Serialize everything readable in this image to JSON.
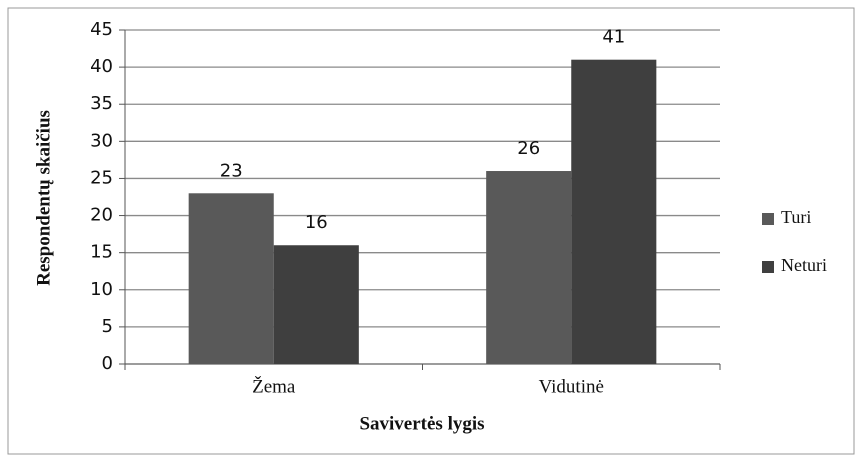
{
  "chart_data": {
    "type": "bar",
    "categories": [
      "Žema",
      "Vidutinė"
    ],
    "series": [
      {
        "name": "Turi",
        "color": "#595959",
        "values": [
          23,
          26
        ]
      },
      {
        "name": "Neturi",
        "color": "#3f3f3f",
        "values": [
          16,
          41
        ]
      }
    ],
    "xlabel": "Savivertės lygis",
    "ylabel": "Respondentų skaičius",
    "ylim": [
      0,
      45
    ],
    "yticks": [
      0,
      5,
      10,
      15,
      20,
      25,
      30,
      35,
      40,
      45
    ],
    "grid": true,
    "legend": "right"
  }
}
